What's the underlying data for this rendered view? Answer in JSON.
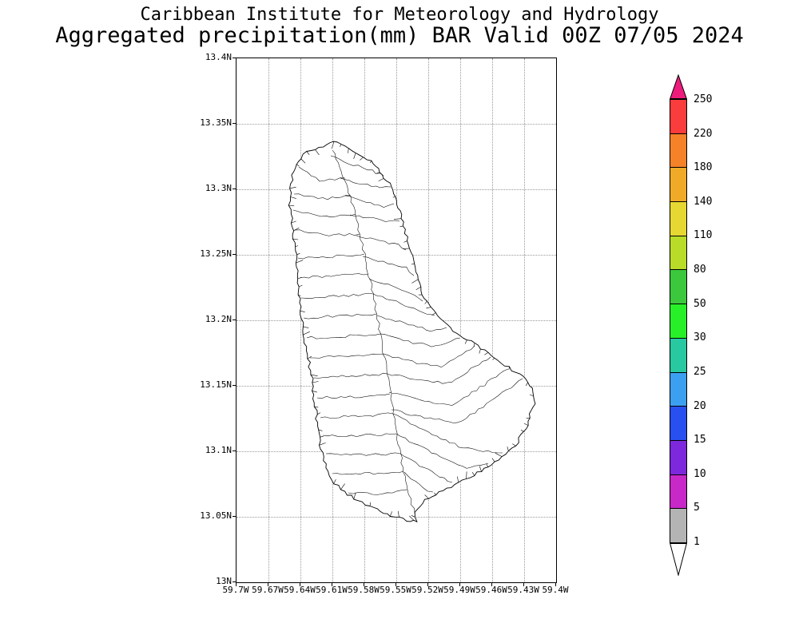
{
  "title": {
    "line1": "Caribbean Institute for Meteorology and Hydrology",
    "line2": "Aggregated precipitation(mm) BAR Valid 00Z 07/05 2024"
  },
  "axes": {
    "y_ticks": [
      "13.4N",
      "13.35N",
      "13.3N",
      "13.25N",
      "13.2N",
      "13.15N",
      "13.1N",
      "13.05N",
      "13N"
    ],
    "x_ticks": [
      "59.7W",
      "59.67W",
      "59.64W",
      "59.61W",
      "59.58W",
      "59.55W",
      "59.52W",
      "59.49W",
      "59.46W",
      "59.43W",
      "59.4W"
    ]
  },
  "colorbar": {
    "labels": [
      "250",
      "220",
      "180",
      "140",
      "110",
      "80",
      "50",
      "30",
      "25",
      "20",
      "15",
      "10",
      "5",
      "1"
    ],
    "segment_colors": [
      "#fa3c3c",
      "#f58228",
      "#f0aa28",
      "#e6d732",
      "#b9dc28",
      "#3cc83c",
      "#28f028",
      "#28c8a0",
      "#3ca0f0",
      "#2850f0",
      "#7d28dc",
      "#c828c8",
      "#b4b4b4"
    ],
    "top_arrow_color": "#ed1c7c",
    "bottom_arrow_color": "#ffffff"
  }
}
